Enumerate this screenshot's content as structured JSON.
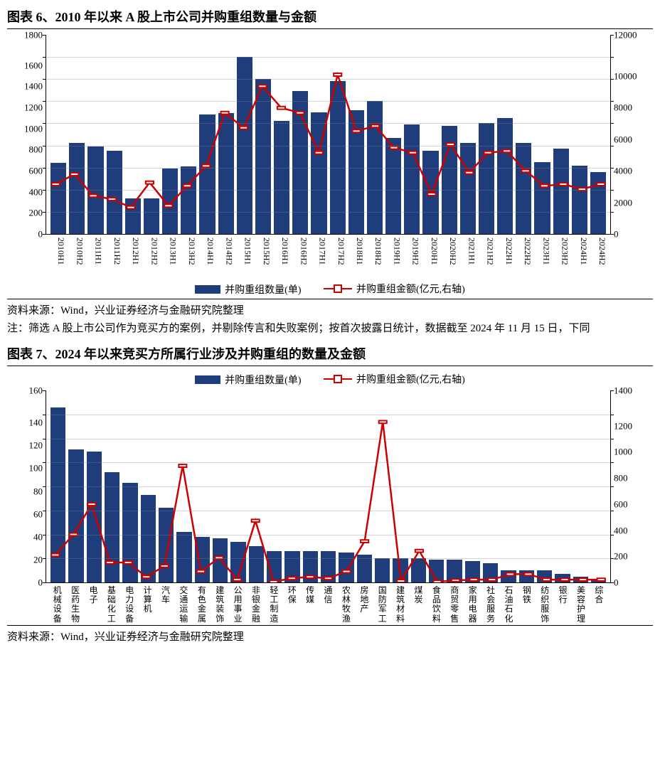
{
  "chart6": {
    "title": "图表 6、2010 年以来 A 股上市公司并购重组数量与金额",
    "source": "资料来源：Wind，兴业证券经济与金融研究院整理",
    "note": "注：筛选 A 股上市公司作为竞买方的案例，并剔除传言和失败案例；按首次披露日统计，数据截至 2024 年 11 月 15 日，下同",
    "left_axis": {
      "min": 0,
      "max": 1800,
      "step": 200
    },
    "right_axis": {
      "min": 0,
      "max": 12000,
      "step": 2000
    },
    "legend_bar": "并购重组数量(单)",
    "legend_line": "并购重组金额(亿元,右轴)",
    "bar_color": "#1f3d7a",
    "line_color": "#cc0000",
    "categories": [
      "2010H1",
      "2010H2",
      "2011H1",
      "2011H2",
      "2012H1",
      "2012H2",
      "2013H1",
      "2013H2",
      "2014H1",
      "2014H2",
      "2015H1",
      "2015H2",
      "2016H1",
      "2016H2",
      "2017H1",
      "2017H2",
      "2018H1",
      "2018H2",
      "2019H1",
      "2019H2",
      "2020H1",
      "2020H2",
      "2021H1",
      "2021H2",
      "2022H1",
      "2022H2",
      "2023H1",
      "2023H2",
      "2024H1",
      "2024H2"
    ],
    "bar_values": [
      640,
      820,
      790,
      750,
      320,
      320,
      590,
      610,
      1080,
      1090,
      1600,
      1400,
      1020,
      1290,
      1100,
      1380,
      1120,
      1200,
      870,
      990,
      750,
      980,
      820,
      1000,
      1050,
      820,
      650,
      770,
      620,
      560
    ],
    "line_values": [
      3000,
      3600,
      2300,
      2100,
      1600,
      3100,
      1700,
      2900,
      4100,
      7300,
      6400,
      8900,
      7600,
      7300,
      4900,
      9600,
      6200,
      6500,
      5200,
      4900,
      2400,
      5400,
      3700,
      4900,
      5000,
      3800,
      2900,
      3000,
      2700,
      3000
    ]
  },
  "chart7": {
    "title": "图表 7、2024 年以来竞买方所属行业涉及并购重组的数量及金额",
    "source": "资料来源：Wind，兴业证券经济与金融研究院整理",
    "left_axis": {
      "min": 0,
      "max": 160,
      "step": 20
    },
    "right_axis": {
      "min": 0,
      "max": 1400,
      "step": 200
    },
    "legend_bar": "并购重组数量(单)",
    "legend_line": "并购重组金额(亿元,右轴)",
    "bar_color": "#1f3d7a",
    "line_color": "#cc0000",
    "categories": [
      "机械设备",
      "医药生物",
      "电子",
      "基础化工",
      "电力设备",
      "计算机",
      "汽车",
      "交通运输",
      "有色金属",
      "建筑装饰",
      "公用事业",
      "非银金融",
      "轻工制造",
      "环保",
      "传媒",
      "通信",
      "农林牧渔",
      "房地产",
      "国防军工",
      "建筑材料",
      "煤炭",
      "食品饮料",
      "商贸零售",
      "家用电器",
      "社会服务",
      "石油石化",
      "钢铁",
      "纺织服饰",
      "银行",
      "美容护理",
      "综合"
    ],
    "bar_values": [
      146,
      111,
      109,
      92,
      83,
      73,
      62,
      42,
      38,
      37,
      34,
      30,
      26,
      26,
      26,
      26,
      25,
      23,
      20,
      20,
      20,
      19,
      19,
      18,
      16,
      10,
      10,
      10,
      7,
      5,
      3
    ],
    "line_values": [
      200,
      350,
      570,
      145,
      145,
      40,
      120,
      850,
      80,
      180,
      20,
      450,
      5,
      30,
      40,
      30,
      80,
      300,
      1170,
      10,
      230,
      5,
      15,
      20,
      20,
      60,
      60,
      20,
      20,
      20,
      20
    ]
  }
}
